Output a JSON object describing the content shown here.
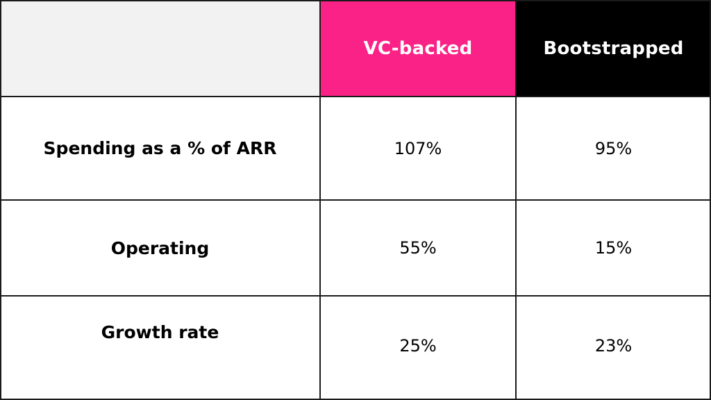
{
  "table": {
    "headers": [
      "",
      "VC-backed",
      "Bootstrapped"
    ],
    "rows": [
      {
        "label": "Spending as a % of ARR",
        "vc_backed": "107%",
        "bootstrapped": "95%"
      },
      {
        "label": "Operating",
        "vc_backed": "55%",
        "bootstrapped": "15%"
      },
      {
        "label": "Growth rate",
        "vc_backed": "25%",
        "bootstrapped": "23%"
      }
    ]
  },
  "colors": {
    "vc_header_bg": "#fa2286",
    "bootstrapped_header_bg": "#000000",
    "blank_header_bg": "#f2f2f2",
    "header_text": "#ffffff",
    "body_text": "#000000"
  }
}
